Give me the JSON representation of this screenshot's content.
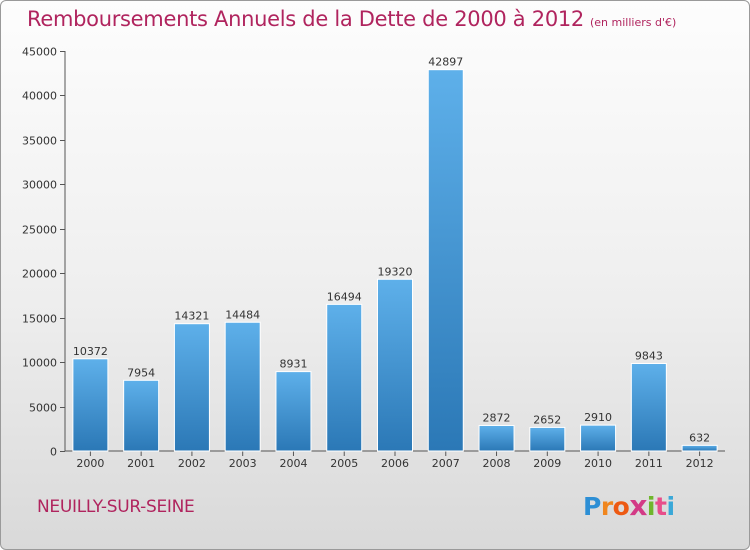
{
  "header": {
    "title": "Remboursements Annuels de la Dette de 2000 à 2012",
    "subtitle": "(en milliers d'€)"
  },
  "footer": {
    "city": "NEUILLY-SUR-SEINE",
    "logo_letters": [
      "P",
      "r",
      "o",
      "x",
      "i",
      "t",
      "i"
    ]
  },
  "colors": {
    "title": "#b0245e",
    "bar_top": "#5eb0ea",
    "bar_bottom": "#2b78b6"
  },
  "chart_data": {
    "type": "bar",
    "categories": [
      "2000",
      "2001",
      "2002",
      "2003",
      "2004",
      "2005",
      "2006",
      "2007",
      "2008",
      "2009",
      "2010",
      "2011",
      "2012"
    ],
    "values": [
      10372,
      7954,
      14321,
      14484,
      8931,
      16494,
      19320,
      42897,
      2872,
      2652,
      2910,
      9843,
      632
    ],
    "data_labels": [
      "10372",
      "7954",
      "14321",
      "14484",
      "8931",
      "16494",
      "19320",
      "42897",
      "2872",
      "2652",
      "2910",
      "9843",
      "632"
    ],
    "yticks": [
      0,
      5000,
      10000,
      15000,
      20000,
      25000,
      30000,
      35000,
      40000,
      45000
    ],
    "ylim": [
      0,
      45000
    ],
    "grid": false,
    "legend": "none"
  }
}
